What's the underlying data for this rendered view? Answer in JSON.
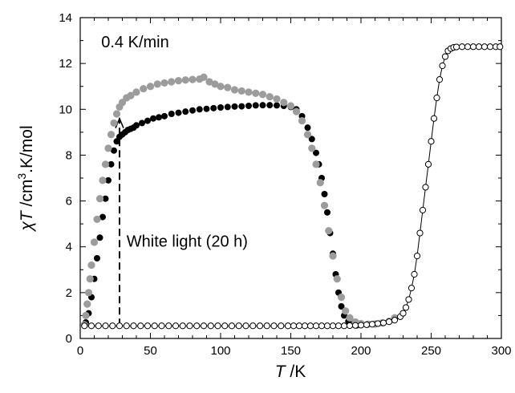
{
  "chart_data": {
    "type": "scatter",
    "title": "",
    "xlabel": {
      "symbol": "T",
      "unit": " /K"
    },
    "ylabel": {
      "symbol": "χT",
      "unit": " /cm",
      "sup": "3",
      "unit2": ".K/mol"
    },
    "xlim": [
      0,
      300
    ],
    "ylim": [
      0,
      14
    ],
    "xticks": [
      0,
      50,
      100,
      150,
      200,
      250,
      300
    ],
    "yticks": [
      0,
      2,
      4,
      6,
      8,
      10,
      12,
      14
    ],
    "grid": false,
    "legend": "none",
    "annotations": [
      {
        "text": "0.4 K/min",
        "x": 15,
        "y": 12.7
      },
      {
        "text": "White light (20 h)",
        "x": 33,
        "y": 4.0
      }
    ],
    "irradiation_marker": {
      "x": 28,
      "y_from": 0.55,
      "y_to": 9.6
    },
    "series": [
      {
        "style": "open-circles-line",
        "color": "#000000",
        "points": [
          [
            3,
            0.55
          ],
          [
            8,
            0.55
          ],
          [
            13,
            0.55
          ],
          [
            18,
            0.55
          ],
          [
            23,
            0.55
          ],
          [
            28,
            0.55
          ],
          [
            33,
            0.55
          ],
          [
            38,
            0.55
          ],
          [
            43,
            0.55
          ],
          [
            48,
            0.55
          ],
          [
            53,
            0.55
          ],
          [
            58,
            0.55
          ],
          [
            63,
            0.55
          ],
          [
            68,
            0.55
          ],
          [
            73,
            0.55
          ],
          [
            78,
            0.55
          ],
          [
            83,
            0.55
          ],
          [
            88,
            0.55
          ],
          [
            93,
            0.55
          ],
          [
            98,
            0.55
          ],
          [
            103,
            0.55
          ],
          [
            108,
            0.55
          ],
          [
            113,
            0.55
          ],
          [
            118,
            0.55
          ],
          [
            123,
            0.55
          ],
          [
            128,
            0.55
          ],
          [
            133,
            0.55
          ],
          [
            138,
            0.55
          ],
          [
            143,
            0.55
          ],
          [
            148,
            0.55
          ],
          [
            152,
            0.55
          ],
          [
            156,
            0.55
          ],
          [
            160,
            0.55
          ],
          [
            164,
            0.55
          ],
          [
            168,
            0.55
          ],
          [
            172,
            0.55
          ],
          [
            176,
            0.55
          ],
          [
            180,
            0.55
          ],
          [
            184,
            0.55
          ],
          [
            188,
            0.55
          ],
          [
            192,
            0.56
          ],
          [
            196,
            0.57
          ],
          [
            200,
            0.58
          ],
          [
            204,
            0.6
          ],
          [
            208,
            0.62
          ],
          [
            212,
            0.65
          ],
          [
            216,
            0.68
          ],
          [
            220,
            0.73
          ],
          [
            224,
            0.8
          ],
          [
            228,
            0.95
          ],
          [
            230,
            1.1
          ],
          [
            232,
            1.35
          ],
          [
            234,
            1.7
          ],
          [
            236,
            2.2
          ],
          [
            238,
            2.8
          ],
          [
            240,
            3.6
          ],
          [
            242,
            4.6
          ],
          [
            244,
            5.6
          ],
          [
            246,
            6.6
          ],
          [
            248,
            7.6
          ],
          [
            250,
            8.6
          ],
          [
            252,
            9.6
          ],
          [
            254,
            10.5
          ],
          [
            256,
            11.3
          ],
          [
            258,
            11.9
          ],
          [
            260,
            12.3
          ],
          [
            262,
            12.55
          ],
          [
            264,
            12.65
          ],
          [
            266,
            12.7
          ],
          [
            268,
            12.72
          ],
          [
            272,
            12.73
          ],
          [
            276,
            12.73
          ],
          [
            280,
            12.73
          ],
          [
            284,
            12.73
          ],
          [
            288,
            12.73
          ],
          [
            292,
            12.73
          ],
          [
            296,
            12.73
          ],
          [
            299,
            12.73
          ]
        ]
      },
      {
        "style": "filled-black",
        "color": "#000000",
        "points": [
          [
            4,
            0.7
          ],
          [
            6,
            1.1
          ],
          [
            8,
            1.8
          ],
          [
            10,
            2.6
          ],
          [
            12,
            3.5
          ],
          [
            14,
            4.4
          ],
          [
            16,
            5.3
          ],
          [
            18,
            6.1
          ],
          [
            20,
            6.9
          ],
          [
            22,
            7.6
          ],
          [
            24,
            8.2
          ],
          [
            26,
            8.6
          ],
          [
            28,
            8.8
          ],
          [
            30,
            8.9
          ],
          [
            32,
            9.0
          ],
          [
            34,
            9.1
          ],
          [
            36,
            9.15
          ],
          [
            38,
            9.2
          ],
          [
            40,
            9.3
          ],
          [
            44,
            9.4
          ],
          [
            48,
            9.5
          ],
          [
            52,
            9.6
          ],
          [
            56,
            9.65
          ],
          [
            60,
            9.7
          ],
          [
            65,
            9.8
          ],
          [
            70,
            9.85
          ],
          [
            75,
            9.9
          ],
          [
            80,
            9.95
          ],
          [
            85,
            10.0
          ],
          [
            90,
            10.02
          ],
          [
            95,
            10.05
          ],
          [
            100,
            10.08
          ],
          [
            105,
            10.1
          ],
          [
            110,
            10.12
          ],
          [
            115,
            10.13
          ],
          [
            120,
            10.15
          ],
          [
            125,
            10.17
          ],
          [
            130,
            10.18
          ],
          [
            135,
            10.18
          ],
          [
            140,
            10.17
          ],
          [
            145,
            10.15
          ],
          [
            150,
            10.1
          ],
          [
            154,
            10.0
          ],
          [
            158,
            9.7
          ],
          [
            162,
            9.2
          ],
          [
            165,
            8.7
          ],
          [
            168,
            8.1
          ],
          [
            170,
            7.6
          ],
          [
            172,
            7.0
          ],
          [
            174,
            6.3
          ],
          [
            176,
            5.5
          ],
          [
            178,
            4.6
          ],
          [
            180,
            3.7
          ],
          [
            182,
            2.8
          ],
          [
            184,
            2.0
          ],
          [
            186,
            1.4
          ],
          [
            188,
            1.0
          ],
          [
            191,
            0.75
          ],
          [
            194,
            0.62
          ],
          [
            197,
            0.57
          ]
        ]
      },
      {
        "style": "filled-gray",
        "color": "#9c9c9c",
        "points": [
          [
            3,
            0.6
          ],
          [
            4,
            1.0
          ],
          [
            5,
            1.5
          ],
          [
            6,
            2.0
          ],
          [
            7,
            2.6
          ],
          [
            8,
            3.2
          ],
          [
            10,
            4.2
          ],
          [
            12,
            5.2
          ],
          [
            14,
            6.1
          ],
          [
            16,
            6.9
          ],
          [
            18,
            7.6
          ],
          [
            20,
            8.3
          ],
          [
            22,
            8.9
          ],
          [
            24,
            9.4
          ],
          [
            26,
            9.8
          ],
          [
            28,
            10.1
          ],
          [
            30,
            10.3
          ],
          [
            33,
            10.5
          ],
          [
            36,
            10.6
          ],
          [
            40,
            10.75
          ],
          [
            45,
            10.9
          ],
          [
            50,
            11.0
          ],
          [
            55,
            11.1
          ],
          [
            60,
            11.15
          ],
          [
            65,
            11.2
          ],
          [
            70,
            11.25
          ],
          [
            75,
            11.28
          ],
          [
            80,
            11.3
          ],
          [
            85,
            11.32
          ],
          [
            88,
            11.4
          ],
          [
            92,
            11.2
          ],
          [
            96,
            11.1
          ],
          [
            100,
            11.0
          ],
          [
            105,
            10.95
          ],
          [
            110,
            10.85
          ],
          [
            115,
            10.8
          ],
          [
            120,
            10.75
          ],
          [
            125,
            10.7
          ],
          [
            130,
            10.65
          ],
          [
            135,
            10.55
          ],
          [
            140,
            10.45
          ],
          [
            145,
            10.3
          ],
          [
            150,
            10.15
          ],
          [
            154,
            9.9
          ],
          [
            158,
            9.5
          ],
          [
            162,
            8.9
          ],
          [
            165,
            8.3
          ],
          [
            168,
            7.6
          ],
          [
            171,
            6.8
          ],
          [
            174,
            5.8
          ],
          [
            177,
            4.7
          ],
          [
            180,
            3.6
          ],
          [
            183,
            2.6
          ],
          [
            186,
            1.8
          ],
          [
            189,
            1.2
          ],
          [
            192,
            0.9
          ],
          [
            196,
            0.72
          ],
          [
            200,
            0.65
          ],
          [
            205,
            0.62
          ],
          [
            210,
            0.63
          ],
          [
            215,
            0.68
          ],
          [
            220,
            0.75
          ],
          [
            224,
            0.9
          ]
        ]
      }
    ]
  }
}
